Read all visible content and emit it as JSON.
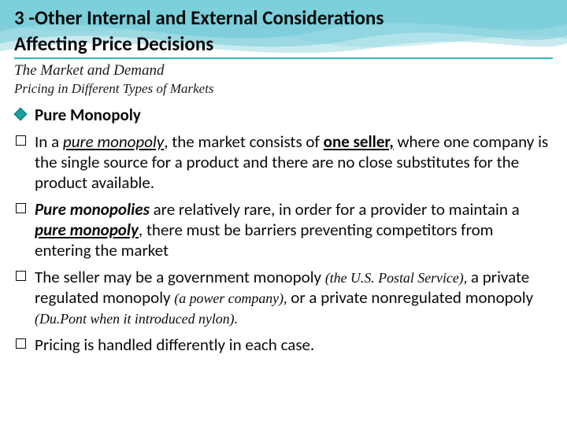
{
  "colors": {
    "accent": "#2ab6b6",
    "text": "#0b0b0b",
    "diamond_fill": "#17a2a2",
    "diamond_stroke": "#0d7070",
    "wave1": "rgba(90,200,215,0.35)",
    "wave2": "rgba(60,180,200,0.30)",
    "wave3": "rgba(40,170,190,0.25)",
    "wave4": "rgba(120,210,220,0.30)"
  },
  "title": {
    "line1": "3 -Other Internal and External Considerations",
    "line2": "Affecting Price Decisions",
    "fontsize": 25,
    "underline_color": "#2ab6b6"
  },
  "subhead1": {
    "text": "The Market and Demand",
    "fontsize": 19
  },
  "subhead2": {
    "text": "Pricing in Different Types of Markets",
    "fontsize": 17
  },
  "bullets": [
    {
      "marker": "diamond",
      "runs": [
        {
          "t": "Pure Monopoly",
          "bold": true
        }
      ]
    },
    {
      "marker": "square",
      "runs": [
        {
          "t": "In a "
        },
        {
          "t": "pure monopoly",
          "ital": true,
          "under": true
        },
        {
          "t": ", the market consists of "
        },
        {
          "t": "one seller,",
          "bold": true,
          "under": true
        },
        {
          "t": "  where one company is the single source for a product and there are no close substitutes for the product available."
        }
      ]
    },
    {
      "marker": "square",
      "runs": [
        {
          "t": "Pure monopolies",
          "bold": true,
          "ital": true
        },
        {
          "t": " are relatively rare, in order for a provider to maintain a "
        },
        {
          "t": "pure monopoly",
          "bold": true,
          "ital": true,
          "under": true
        },
        {
          "t": ", there must be barriers preventing competitors from entering the market"
        }
      ]
    },
    {
      "marker": "square",
      "runs": [
        {
          "t": "The seller may be a government monopoly "
        },
        {
          "t": "(the U.S. Postal Service),",
          "serif_ital": true
        },
        {
          "t": " a private regulated monopoly "
        },
        {
          "t": "(a power company),",
          "serif_ital": true
        },
        {
          "t": " or a private nonregulated monopoly "
        },
        {
          "t": "(Du.Pont when it introduced nylon).",
          "serif_ital": true
        }
      ]
    },
    {
      "marker": "square",
      "runs": [
        {
          "t": "Pricing is handled differently in each case."
        }
      ]
    }
  ]
}
